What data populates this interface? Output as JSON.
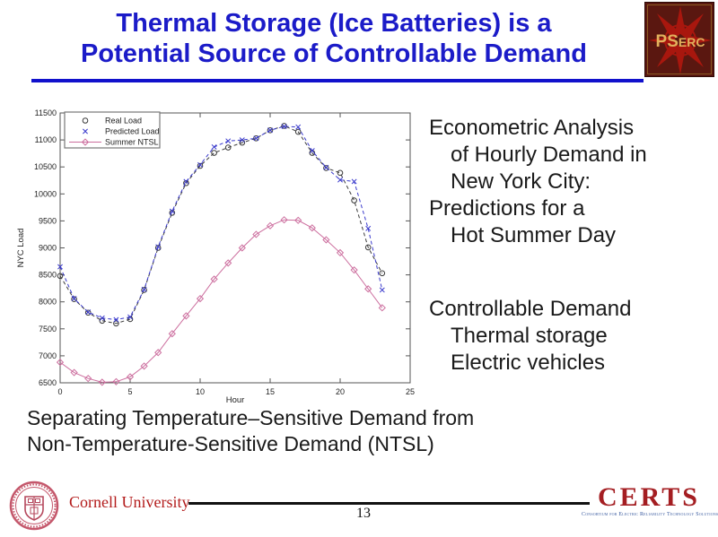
{
  "slide": {
    "title_lines": [
      "Thermal Storage (Ice Batteries) is a",
      "Potential Source of Controllable Demand"
    ]
  },
  "colors": {
    "title_blue": "#1b1bc8",
    "rule_blue": "#1111cc",
    "pserc_bg": "#5a1710",
    "pserc_gold": "#e2b15c",
    "pserc_star_red": "#a8170e",
    "cornell_red": "#b31b1b",
    "certs_red": "#a41e22",
    "certs_sub_blue": "#3a5ba0",
    "real_load": "#3a3a3a",
    "predicted_load": "#3a3acc",
    "summer_ntsl": "#cc6e9e"
  },
  "pserc_logo": {
    "text": "PSERC"
  },
  "right_text": {
    "block1": [
      {
        "text": "Econometric Analysis",
        "indent": false
      },
      {
        "text": "of Hourly Demand in",
        "indent": true
      },
      {
        "text": "New York City:",
        "indent": true
      },
      {
        "text": "Predictions for a",
        "indent": false
      },
      {
        "text": "Hot Summer Day",
        "indent": true
      }
    ],
    "block2": [
      {
        "text": "Controllable Demand",
        "indent": false
      },
      {
        "text": "Thermal storage",
        "indent": true
      },
      {
        "text": "Electric vehicles",
        "indent": true
      }
    ]
  },
  "caption_lines": [
    "Separating Temperature–Sensitive Demand from",
    "Non-Temperature-Sensitive Demand (NTSL)"
  ],
  "footer": {
    "cornell_label": "Cornell University",
    "certs_label": "CERTS",
    "certs_subtext": "Consortium for Electric Reliability Technology Solutions",
    "page_number": "13"
  },
  "chart_data": {
    "type": "line",
    "title": "",
    "xlabel": "Hour",
    "ylabel": "NYC Load",
    "xlim": [
      0,
      25
    ],
    "ylim": [
      6500,
      11500
    ],
    "x_ticks": [
      0,
      5,
      10,
      15,
      20,
      25
    ],
    "y_ticks": [
      6500,
      7000,
      7500,
      8000,
      8500,
      9000,
      9500,
      10000,
      10500,
      11000,
      11500
    ],
    "grid": false,
    "legend_position": "top-left",
    "x": [
      0,
      1,
      2,
      3,
      4,
      5,
      6,
      7,
      8,
      9,
      10,
      11,
      12,
      13,
      14,
      15,
      16,
      17,
      18,
      19,
      20,
      21,
      22,
      23
    ],
    "series": [
      {
        "name": "Real Load",
        "marker": "circle",
        "line": "dashed",
        "color": "#3a3a3a",
        "values": [
          8480,
          8050,
          7800,
          7650,
          7600,
          7680,
          8220,
          9000,
          9650,
          10200,
          10520,
          10760,
          10860,
          10950,
          11030,
          11180,
          11260,
          11150,
          10760,
          10480,
          10390,
          9880,
          9010,
          8530
        ]
      },
      {
        "name": "Predicted Load",
        "marker": "x",
        "line": "dashed",
        "color": "#3a3acc",
        "values": [
          8650,
          8060,
          7810,
          7700,
          7670,
          7720,
          8230,
          9020,
          9680,
          10230,
          10540,
          10870,
          10980,
          11000,
          11030,
          11180,
          11250,
          11240,
          10800,
          10490,
          10260,
          10230,
          9360,
          8220
        ]
      },
      {
        "name": "Summer NTSL",
        "marker": "diamond",
        "line": "solid",
        "color": "#cc6e9e",
        "values": [
          6880,
          6690,
          6580,
          6510,
          6520,
          6610,
          6810,
          7060,
          7410,
          7740,
          8060,
          8420,
          8720,
          9000,
          9250,
          9410,
          9520,
          9510,
          9370,
          9150,
          8910,
          8590,
          8240,
          7890
        ]
      }
    ]
  }
}
